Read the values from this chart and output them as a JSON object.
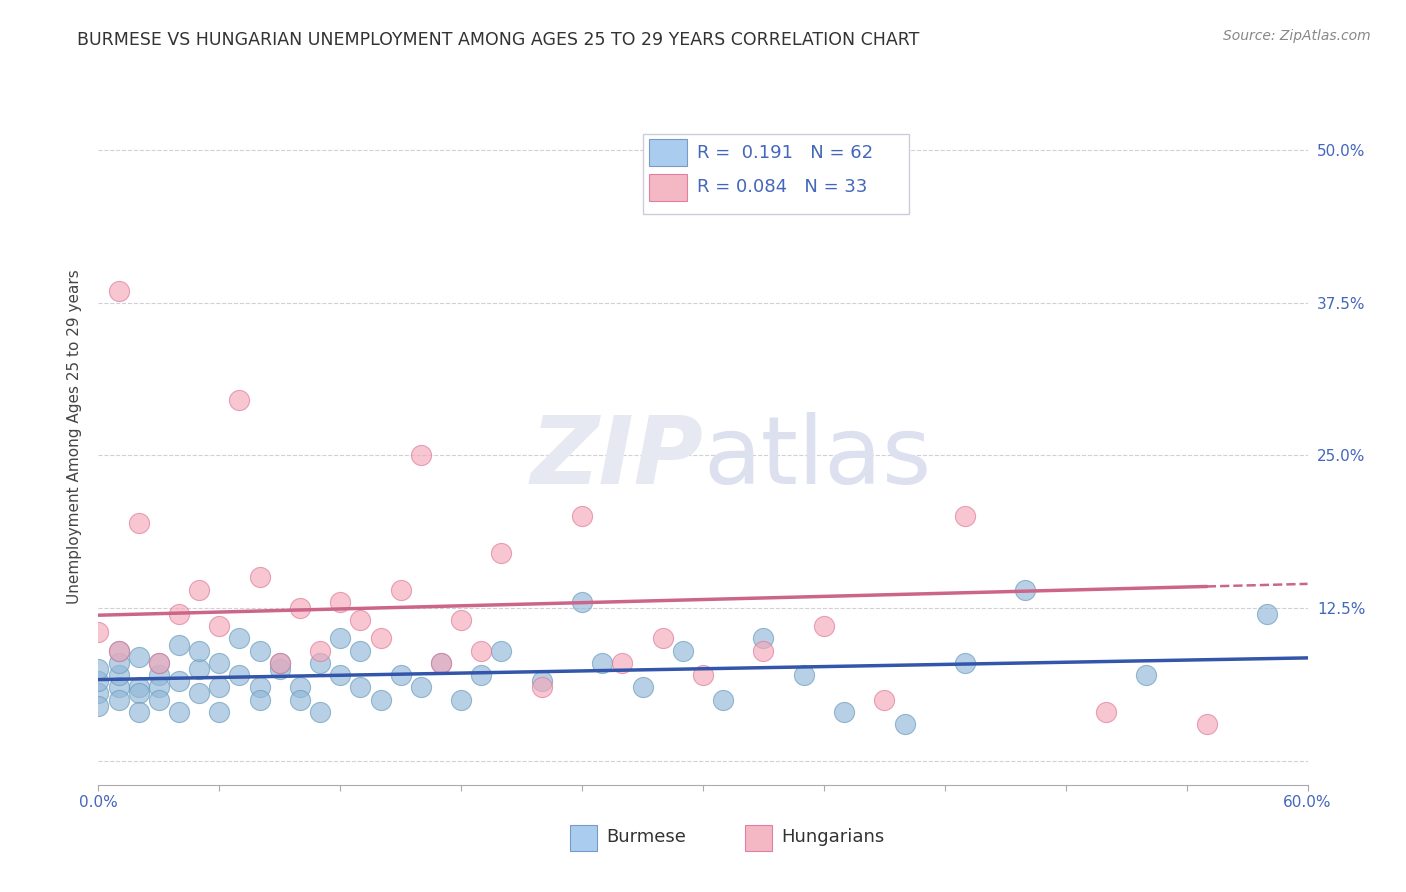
{
  "title": "BURMESE VS HUNGARIAN UNEMPLOYMENT AMONG AGES 25 TO 29 YEARS CORRELATION CHART",
  "source": "Source: ZipAtlas.com",
  "ylabel": "Unemployment Among Ages 25 to 29 years",
  "xlim": [
    0.0,
    0.6
  ],
  "ylim": [
    -0.02,
    0.55
  ],
  "yticks": [
    0.0,
    0.125,
    0.25,
    0.375,
    0.5
  ],
  "ytick_labels": [
    "",
    "12.5%",
    "25.0%",
    "37.5%",
    "50.0%"
  ],
  "background_color": "#ffffff",
  "blue_scatter_color": "#92b8d8",
  "blue_scatter_edge": "#6699bb",
  "pink_scatter_color": "#f5a8b8",
  "pink_scatter_edge": "#dd7799",
  "blue_line_color": "#3355aa",
  "pink_line_color": "#cc6688",
  "tick_color": "#4466bb",
  "grid_color": "#d0d0d8",
  "legend_R_blue": "R =  0.191",
  "legend_N_blue": "N = 62",
  "legend_R_pink": "R = 0.084",
  "legend_N_pink": "N = 33",
  "burmese_x": [
    0.0,
    0.0,
    0.0,
    0.0,
    0.01,
    0.01,
    0.01,
    0.01,
    0.01,
    0.02,
    0.02,
    0.02,
    0.02,
    0.03,
    0.03,
    0.03,
    0.03,
    0.04,
    0.04,
    0.04,
    0.05,
    0.05,
    0.05,
    0.06,
    0.06,
    0.06,
    0.07,
    0.07,
    0.08,
    0.08,
    0.08,
    0.09,
    0.09,
    0.1,
    0.1,
    0.11,
    0.11,
    0.12,
    0.12,
    0.13,
    0.13,
    0.14,
    0.15,
    0.16,
    0.17,
    0.18,
    0.19,
    0.2,
    0.22,
    0.24,
    0.25,
    0.27,
    0.29,
    0.31,
    0.33,
    0.35,
    0.37,
    0.4,
    0.43,
    0.46,
    0.52,
    0.58
  ],
  "burmese_y": [
    0.055,
    0.065,
    0.075,
    0.045,
    0.06,
    0.07,
    0.05,
    0.08,
    0.09,
    0.06,
    0.055,
    0.085,
    0.04,
    0.07,
    0.06,
    0.05,
    0.08,
    0.065,
    0.04,
    0.095,
    0.075,
    0.055,
    0.09,
    0.06,
    0.08,
    0.04,
    0.07,
    0.1,
    0.06,
    0.05,
    0.09,
    0.075,
    0.08,
    0.06,
    0.05,
    0.08,
    0.04,
    0.07,
    0.1,
    0.06,
    0.09,
    0.05,
    0.07,
    0.06,
    0.08,
    0.05,
    0.07,
    0.09,
    0.065,
    0.13,
    0.08,
    0.06,
    0.09,
    0.05,
    0.1,
    0.07,
    0.04,
    0.03,
    0.08,
    0.14,
    0.07,
    0.12
  ],
  "hungarian_x": [
    0.0,
    0.01,
    0.01,
    0.02,
    0.03,
    0.04,
    0.05,
    0.06,
    0.07,
    0.08,
    0.09,
    0.1,
    0.11,
    0.12,
    0.13,
    0.14,
    0.15,
    0.16,
    0.17,
    0.18,
    0.19,
    0.2,
    0.22,
    0.24,
    0.26,
    0.28,
    0.3,
    0.33,
    0.36,
    0.39,
    0.43,
    0.5,
    0.55
  ],
  "hungarian_y": [
    0.105,
    0.09,
    0.385,
    0.195,
    0.08,
    0.12,
    0.14,
    0.11,
    0.295,
    0.15,
    0.08,
    0.125,
    0.09,
    0.13,
    0.115,
    0.1,
    0.14,
    0.25,
    0.08,
    0.115,
    0.09,
    0.17,
    0.06,
    0.2,
    0.08,
    0.1,
    0.07,
    0.09,
    0.11,
    0.05,
    0.2,
    0.04,
    0.03
  ],
  "title_fontsize": 12.5,
  "source_fontsize": 10,
  "axis_label_fontsize": 11,
  "tick_fontsize": 11,
  "legend_fontsize": 13
}
